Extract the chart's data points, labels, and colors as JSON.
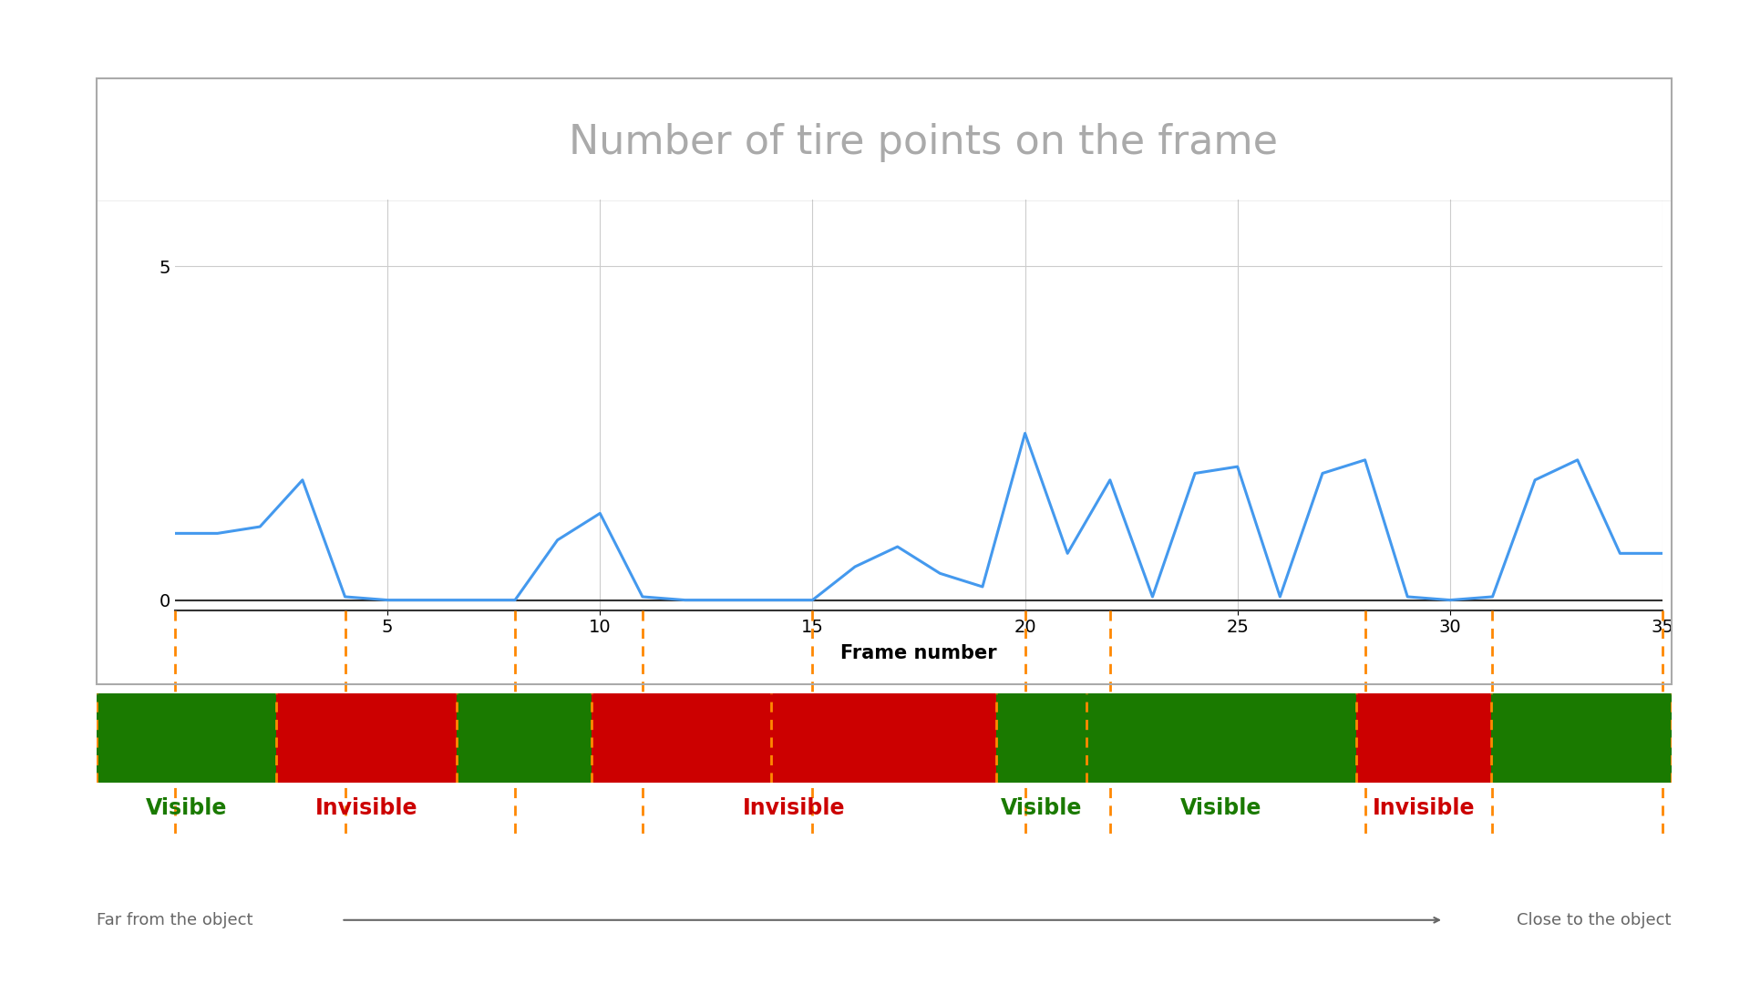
{
  "title": "Number of tire points on the frame",
  "xlabel": "Frame number",
  "ylim": [
    -0.15,
    6
  ],
  "xlim": [
    0,
    35
  ],
  "yticks": [
    0,
    5
  ],
  "xticks": [
    5,
    10,
    15,
    20,
    25,
    30,
    35
  ],
  "line_color": "#4499ee",
  "line_data_x": [
    0,
    1,
    2,
    3,
    4,
    5,
    6,
    7,
    8,
    9,
    10,
    11,
    12,
    13,
    14,
    15,
    16,
    17,
    18,
    19,
    20,
    21,
    22,
    23,
    24,
    25,
    26,
    27,
    28,
    29,
    30,
    31,
    32,
    33,
    34,
    35
  ],
  "line_data_y": [
    1.0,
    1.0,
    1.1,
    1.8,
    0.05,
    0,
    0,
    0,
    0,
    0.9,
    1.3,
    0.05,
    0,
    0,
    0,
    0,
    0.5,
    0.8,
    0.4,
    0.2,
    2.5,
    0.7,
    1.8,
    0.05,
    1.9,
    2.0,
    0.05,
    1.9,
    2.1,
    0.05,
    0,
    0.05,
    1.8,
    2.1,
    0.7,
    0.7
  ],
  "dashed_line_color": "#FF8800",
  "dashed_lines_x": [
    0,
    4,
    8,
    11,
    15,
    20,
    22,
    28,
    31,
    35
  ],
  "segments": [
    {
      "start": 0,
      "end": 4,
      "color": "#1a7a00"
    },
    {
      "start": 4,
      "end": 8,
      "color": "#cc0000"
    },
    {
      "start": 8,
      "end": 11,
      "color": "#1a7a00"
    },
    {
      "start": 11,
      "end": 20,
      "color": "#cc0000"
    },
    {
      "start": 20,
      "end": 22,
      "color": "#1a7a00"
    },
    {
      "start": 22,
      "end": 28,
      "color": "#1a7a00"
    },
    {
      "start": 28,
      "end": 31,
      "color": "#cc0000"
    },
    {
      "start": 31,
      "end": 35,
      "color": "#1a7a00"
    }
  ],
  "label_positions": [
    {
      "x_mid": 2.0,
      "label": "Visible",
      "color": "#1a7a00"
    },
    {
      "x_mid": 6.0,
      "label": "Invisible",
      "color": "#cc0000"
    },
    {
      "x_mid": 15.5,
      "label": "Invisible",
      "color": "#cc0000"
    },
    {
      "x_mid": 21.0,
      "label": "Visible",
      "color": "#1a7a00"
    },
    {
      "x_mid": 25.0,
      "label": "Visible",
      "color": "#1a7a00"
    },
    {
      "x_mid": 29.5,
      "label": "Invisible",
      "color": "#cc0000"
    }
  ],
  "background_color": "#ffffff",
  "title_color": "#aaaaaa",
  "title_fontsize": 32,
  "xlabel_fontsize": 15,
  "label_fontsize": 17,
  "far_label": "Far from the object",
  "close_label": "Close to the object",
  "arrow_color": "#666666"
}
